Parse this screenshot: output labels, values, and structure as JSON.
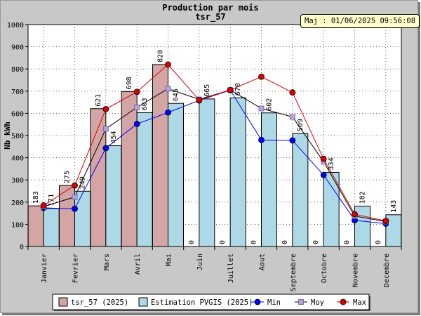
{
  "update_badge": "Maj : 01/06/2025 09:56:08",
  "chart_data": {
    "type": "bar",
    "title": "Production par mois",
    "subtitle": "tsr_57",
    "ylabel": "Nb kWh",
    "ylim": [
      0,
      1000
    ],
    "yticks": [
      0,
      100,
      200,
      300,
      400,
      500,
      600,
      700,
      800,
      900,
      1000
    ],
    "grid": true,
    "legend_position": "bottom",
    "categories": [
      "Janvier",
      "Fevrier",
      "Mars",
      "Avril",
      "Mai",
      "Juin",
      "Juillet",
      "Aout",
      "Septembre",
      "Octobre",
      "Novembre",
      "Decembre"
    ],
    "series": [
      {
        "name": "tsr_57 (2025)",
        "kind": "bar",
        "color": "#d4a5a5",
        "values": [
          183,
          275,
          621,
          698,
          820,
          0,
          0,
          0,
          0,
          0,
          0,
          0
        ]
      },
      {
        "name": "Estimation PVGIS (2025)",
        "kind": "bar",
        "color": "#add8e6",
        "values": [
          171,
          249,
          454,
          603,
          645,
          665,
          670,
          602,
          509,
          334,
          182,
          143
        ]
      },
      {
        "name": "Min",
        "kind": "line",
        "color": "#0000ff",
        "marker": "circle",
        "values": [
          174,
          170,
          443,
          552,
          604,
          658,
          704,
          480,
          478,
          322,
          118,
          103
        ]
      },
      {
        "name": "Moy",
        "kind": "line",
        "color": "#000000",
        "marker_color": "#b5a3dc",
        "marker": "square",
        "values": [
          180,
          223,
          530,
          627,
          711,
          663,
          705,
          622,
          584,
          382,
          137,
          112
        ]
      },
      {
        "name": "Max",
        "kind": "line",
        "color": "#dd0000",
        "marker": "circle",
        "values": [
          185,
          275,
          619,
          697,
          820,
          660,
          705,
          765,
          694,
          395,
          145,
          115
        ]
      }
    ]
  }
}
